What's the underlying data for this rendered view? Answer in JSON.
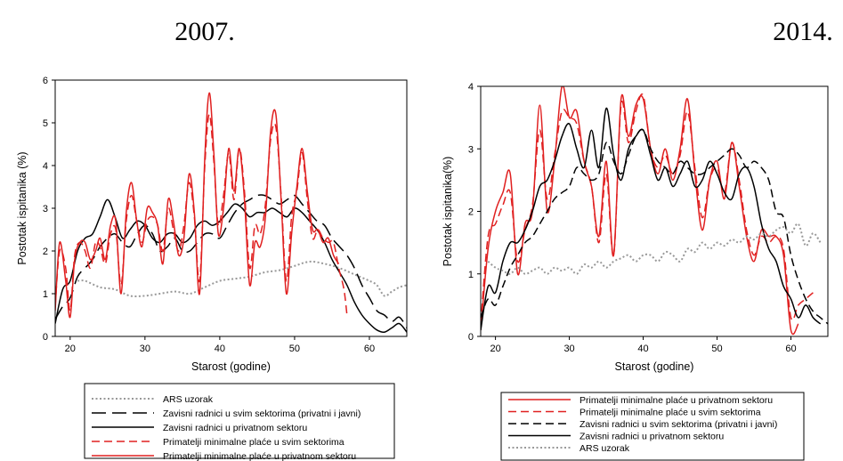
{
  "chart_data": [
    {
      "type": "line",
      "title": "2007.",
      "xlabel": "Starost (godine)",
      "ylabel": "Postotak ispitanika (%)",
      "xlim": [
        18,
        65
      ],
      "ylim": [
        0,
        6
      ],
      "xticks": [
        20,
        30,
        40,
        50,
        60
      ],
      "yticks": [
        0,
        1,
        2,
        3,
        4,
        5,
        6
      ],
      "grid": false,
      "legend_position": "bottom",
      "series": [
        {
          "name": "ARS uzorak",
          "style": "dotted",
          "color": "#999999",
          "x": [
            21,
            22,
            24,
            26,
            28,
            30,
            32,
            34,
            36,
            38,
            40,
            42,
            44,
            46,
            48,
            50,
            52,
            54,
            56,
            58,
            60,
            61,
            62,
            63,
            64,
            65
          ],
          "values": [
            1.3,
            1.3,
            1.15,
            1.1,
            0.95,
            0.95,
            1.0,
            1.05,
            1.0,
            1.15,
            1.3,
            1.35,
            1.4,
            1.5,
            1.55,
            1.65,
            1.75,
            1.7,
            1.6,
            1.45,
            1.3,
            1.2,
            0.95,
            1.05,
            1.15,
            1.2
          ]
        },
        {
          "name": "Zavisni radnici u svim sektorima (privatni i javni)",
          "style": "longdash",
          "color": "#000000",
          "x": [
            18,
            19,
            20,
            21,
            22,
            23,
            24,
            25,
            26,
            27,
            28,
            29,
            30,
            31,
            32,
            33,
            34,
            35,
            36,
            37,
            38,
            39,
            40,
            41,
            42,
            43,
            44,
            45,
            46,
            47,
            48,
            49,
            50,
            51,
            52,
            53,
            54,
            55,
            56,
            57,
            58,
            59,
            60,
            61,
            62,
            63,
            64,
            65
          ],
          "values": [
            0.4,
            0.7,
            0.9,
            1.4,
            1.6,
            1.8,
            2.1,
            2.3,
            2.4,
            2.2,
            2.1,
            2.4,
            2.6,
            2.4,
            2.0,
            2.1,
            2.3,
            2.0,
            2.0,
            2.2,
            2.4,
            2.4,
            2.3,
            2.6,
            2.9,
            3.1,
            3.2,
            3.3,
            3.3,
            3.2,
            3.1,
            3.2,
            3.3,
            3.1,
            2.9,
            2.7,
            2.6,
            2.3,
            2.1,
            1.9,
            1.6,
            1.2,
            0.9,
            0.6,
            0.5,
            0.35,
            0.45,
            0.2
          ]
        },
        {
          "name": "Zavisni radnici u privatnom sektoru",
          "style": "solid",
          "color": "#000000",
          "x": [
            18,
            19,
            20,
            21,
            22,
            23,
            24,
            25,
            26,
            27,
            28,
            29,
            30,
            31,
            32,
            33,
            34,
            35,
            36,
            37,
            38,
            39,
            40,
            41,
            42,
            43,
            44,
            45,
            46,
            47,
            48,
            49,
            50,
            51,
            52,
            53,
            54,
            55,
            56,
            57,
            58,
            59,
            60,
            61,
            62,
            63,
            64,
            65
          ],
          "values": [
            0.3,
            1.1,
            1.3,
            2.0,
            2.3,
            2.4,
            2.8,
            3.2,
            2.8,
            2.3,
            2.5,
            2.7,
            2.6,
            2.3,
            2.2,
            2.4,
            2.4,
            2.2,
            2.3,
            2.6,
            2.7,
            2.6,
            2.7,
            2.9,
            3.1,
            3.0,
            2.8,
            2.9,
            2.9,
            3.0,
            2.9,
            2.8,
            3.0,
            2.9,
            2.7,
            2.5,
            2.2,
            1.8,
            1.5,
            1.2,
            0.8,
            0.5,
            0.3,
            0.15,
            0.1,
            0.2,
            0.3,
            0.1
          ]
        },
        {
          "name": "Primatelji minimalne plaće u svim sektorima",
          "style": "dash",
          "color": "#e02020",
          "x": [
            18,
            18.6,
            19.4,
            20,
            20.6,
            21.3,
            22,
            22.7,
            23.4,
            24,
            24.7,
            25.4,
            26.1,
            26.8,
            27.5,
            28.2,
            28.9,
            29.6,
            30.3,
            31,
            31.7,
            32.4,
            33.1,
            33.8,
            34.5,
            35.2,
            35.9,
            36.6,
            37.3,
            38,
            38.6,
            39.2,
            39.8,
            40.5,
            41.2,
            41.9,
            42.6,
            43.3,
            44,
            44.7,
            45.4,
            46.1,
            46.8,
            47.5,
            48.2,
            48.9,
            49.6,
            50.3,
            51,
            51.7,
            52.4,
            53.1,
            53.8,
            54.5,
            55.2,
            55.9,
            56.6,
            57
          ],
          "values": [
            0.7,
            2.0,
            1.6,
            0.6,
            1.9,
            2.2,
            2.0,
            1.6,
            2.2,
            2.1,
            1.7,
            2.4,
            2.5,
            1.2,
            2.7,
            3.3,
            2.7,
            2.2,
            2.7,
            2.8,
            2.6,
            2.0,
            3.0,
            2.5,
            2.0,
            2.6,
            3.6,
            2.8,
            1.3,
            4.0,
            5.2,
            4.1,
            2.6,
            3.3,
            4.3,
            3.2,
            4.4,
            3.4,
            1.6,
            2.6,
            2.4,
            3.1,
            4.6,
            4.9,
            3.3,
            1.3,
            2.8,
            3.4,
            4.3,
            3.2,
            2.3,
            2.5,
            2.3,
            2.2,
            2.2,
            1.6,
            1.1,
            0.5
          ]
        },
        {
          "name": "Primatelji minimalne plaće u privatnom sektoru",
          "style": "solid",
          "color": "#e02020",
          "x": [
            18,
            18.6,
            19.4,
            20,
            20.6,
            21.3,
            22,
            22.7,
            23.4,
            24,
            24.7,
            25.4,
            26.1,
            26.8,
            27.5,
            28.2,
            28.9,
            29.6,
            30.3,
            31,
            31.7,
            32.4,
            33.1,
            33.8,
            34.5,
            35.2,
            35.9,
            36.6,
            37.3,
            38,
            38.6,
            39.2,
            39.8,
            40.5,
            41.2,
            41.9,
            42.6,
            43.3,
            44,
            44.7,
            45.4,
            46.1,
            46.8,
            47.5,
            48.2,
            48.9,
            49.6,
            50.3,
            51,
            51.7,
            52.4,
            53.1,
            53.8,
            54.5,
            55.2,
            55.9
          ],
          "values": [
            0.6,
            2.2,
            1.3,
            0.45,
            1.8,
            2.2,
            2.2,
            1.8,
            2.0,
            2.3,
            1.8,
            2.6,
            2.7,
            1.0,
            2.9,
            3.6,
            2.7,
            2.1,
            3.0,
            2.9,
            2.6,
            1.7,
            3.2,
            2.7,
            1.9,
            2.3,
            3.8,
            2.9,
            1.0,
            4.2,
            5.7,
            4.3,
            2.4,
            3.0,
            4.4,
            3.4,
            4.4,
            3.2,
            1.2,
            2.2,
            2.1,
            2.8,
            4.8,
            5.2,
            3.2,
            1.0,
            2.4,
            3.5,
            4.4,
            3.4,
            2.5,
            2.5,
            2.2,
            2.3,
            1.9,
            1.7
          ]
        }
      ],
      "legend": [
        "ARS uzorak",
        "Zavisni radnici u svim sektorima (privatni i javni)",
        "Zavisni radnici u privatnom sektoru",
        "Primatelji minimalne plaće u svim sektorima",
        "Primatelji minimalne plaće u privatnom sektoru"
      ]
    },
    {
      "type": "line",
      "title": "2014.",
      "xlabel": "Starost (godine)",
      "ylabel": "Postotak ispitanika(%)",
      "xlim": [
        18,
        65
      ],
      "ylim": [
        0,
        4
      ],
      "xticks": [
        20,
        30,
        40,
        50,
        60
      ],
      "yticks": [
        0,
        1,
        2,
        3,
        4
      ],
      "grid": false,
      "legend_position": "bottom",
      "series": [
        {
          "name": "Primatelji minimalne plaće u privatnom sektoru",
          "style": "solid",
          "color": "#e02020",
          "x": [
            18,
            19,
            20,
            21,
            22,
            23,
            24,
            25,
            26,
            27,
            28,
            29,
            30,
            31,
            32,
            33,
            34,
            35,
            36,
            37,
            38,
            39,
            40,
            41,
            42,
            43,
            44,
            45,
            46,
            47,
            48,
            49,
            50,
            51,
            52,
            53,
            54,
            55,
            56,
            57,
            58,
            59,
            60,
            61
          ],
          "values": [
            0.1,
            1.4,
            2.0,
            2.3,
            2.6,
            1.0,
            1.8,
            2.0,
            3.7,
            2.0,
            2.8,
            4.0,
            3.5,
            3.6,
            2.8,
            2.4,
            1.6,
            2.8,
            1.3,
            3.8,
            3.2,
            3.7,
            3.8,
            3.0,
            2.6,
            3.0,
            2.5,
            3.0,
            3.8,
            2.6,
            1.7,
            2.5,
            2.8,
            2.2,
            3.1,
            2.4,
            1.6,
            1.2,
            1.7,
            1.6,
            1.6,
            1.3,
            0.1,
            0.2
          ]
        },
        {
          "name": "Primatelji minimalne plaće u svim sektorima",
          "style": "dash",
          "color": "#e02020",
          "x": [
            18,
            19,
            20,
            21,
            22,
            23,
            24,
            25,
            26,
            27,
            28,
            29,
            30,
            31,
            32,
            33,
            34,
            35,
            36,
            37,
            38,
            39,
            40,
            41,
            42,
            43,
            44,
            45,
            46,
            47,
            48,
            49,
            50,
            51,
            52,
            53,
            54,
            55,
            56,
            57,
            58,
            59,
            60,
            61,
            62,
            63
          ],
          "values": [
            0.2,
            1.6,
            1.8,
            2.1,
            2.3,
            1.2,
            1.7,
            2.1,
            3.3,
            2.2,
            2.9,
            3.6,
            3.5,
            3.4,
            2.8,
            2.4,
            1.5,
            2.6,
            1.3,
            3.7,
            3.1,
            3.6,
            3.85,
            3.0,
            2.7,
            2.9,
            2.6,
            2.9,
            3.6,
            2.7,
            1.9,
            2.5,
            2.7,
            2.3,
            3.1,
            2.5,
            1.7,
            1.3,
            1.6,
            1.5,
            1.6,
            1.4,
            0.3,
            0.5,
            0.6,
            0.7
          ]
        },
        {
          "name": "Zavisni radnici u svim sektorima (privatni i javni)",
          "style": "dash",
          "color": "#000000",
          "x": [
            18,
            19,
            20,
            21,
            22,
            23,
            24,
            25,
            26,
            27,
            28,
            29,
            30,
            31,
            32,
            33,
            34,
            35,
            36,
            37,
            38,
            39,
            40,
            41,
            42,
            43,
            44,
            45,
            46,
            47,
            48,
            49,
            50,
            51,
            52,
            53,
            54,
            55,
            56,
            57,
            58,
            59,
            60,
            61,
            62,
            63,
            64,
            65
          ],
          "values": [
            0.3,
            0.6,
            0.5,
            0.8,
            1.1,
            1.3,
            1.5,
            1.6,
            1.8,
            2.0,
            2.2,
            2.3,
            2.4,
            2.7,
            2.6,
            2.5,
            2.6,
            3.1,
            2.8,
            2.6,
            2.9,
            3.2,
            3.3,
            3.0,
            2.8,
            2.7,
            2.6,
            2.8,
            2.7,
            2.6,
            2.6,
            2.7,
            2.8,
            2.9,
            3.0,
            2.9,
            2.7,
            2.8,
            2.7,
            2.5,
            2.0,
            1.9,
            1.3,
            0.9,
            0.6,
            0.4,
            0.3,
            0.2
          ]
        },
        {
          "name": "Zavisni radnici u privatnom sektoru",
          "style": "solid",
          "color": "#000000",
          "x": [
            18,
            19,
            20,
            21,
            22,
            23,
            24,
            25,
            26,
            27,
            28,
            29,
            30,
            31,
            32,
            33,
            34,
            35,
            36,
            37,
            38,
            39,
            40,
            41,
            42,
            43,
            44,
            45,
            46,
            47,
            48,
            49,
            50,
            51,
            52,
            53,
            54,
            55,
            56,
            57,
            58,
            59,
            60,
            61,
            62,
            63,
            64
          ],
          "values": [
            0.1,
            0.8,
            0.7,
            1.2,
            1.5,
            1.5,
            1.7,
            2.0,
            2.4,
            2.5,
            2.8,
            3.2,
            3.4,
            3.0,
            2.7,
            3.3,
            2.7,
            3.65,
            2.9,
            2.5,
            3.0,
            3.2,
            3.3,
            2.9,
            2.5,
            2.7,
            2.4,
            2.6,
            2.8,
            2.4,
            2.5,
            2.8,
            2.6,
            2.3,
            2.2,
            2.6,
            2.7,
            2.4,
            1.8,
            1.4,
            1.2,
            0.8,
            0.6,
            0.3,
            0.5,
            0.3,
            0.2
          ]
        },
        {
          "name": "ARS uzorak",
          "style": "dotted",
          "color": "#999999",
          "x": [
            19,
            20,
            21,
            22,
            23,
            24,
            25,
            26,
            27,
            28,
            29,
            30,
            31,
            32,
            33,
            34,
            35,
            36,
            37,
            38,
            39,
            40,
            41,
            42,
            43,
            44,
            45,
            46,
            47,
            48,
            49,
            50,
            51,
            52,
            53,
            54,
            55,
            56,
            57,
            58,
            59,
            60,
            61,
            62,
            63,
            64
          ],
          "values": [
            1.2,
            1.1,
            1.05,
            1.0,
            1.1,
            1.0,
            1.05,
            1.1,
            1.0,
            1.1,
            1.05,
            1.1,
            1.0,
            1.15,
            1.1,
            1.2,
            1.1,
            1.2,
            1.25,
            1.3,
            1.2,
            1.3,
            1.3,
            1.2,
            1.35,
            1.3,
            1.2,
            1.4,
            1.35,
            1.5,
            1.4,
            1.5,
            1.45,
            1.55,
            1.5,
            1.6,
            1.55,
            1.65,
            1.6,
            1.7,
            1.75,
            1.65,
            1.8,
            1.45,
            1.65,
            1.5
          ]
        }
      ],
      "legend": [
        "Primatelji minimalne plaće u privatnom sektoru",
        "Primatelji minimalne plaće u svim sektorima",
        "Zavisni radnici u svim sektorima (privatni i javni)",
        "Zavisni radnici u privatnom sektoru",
        "ARS uzorak"
      ]
    }
  ]
}
